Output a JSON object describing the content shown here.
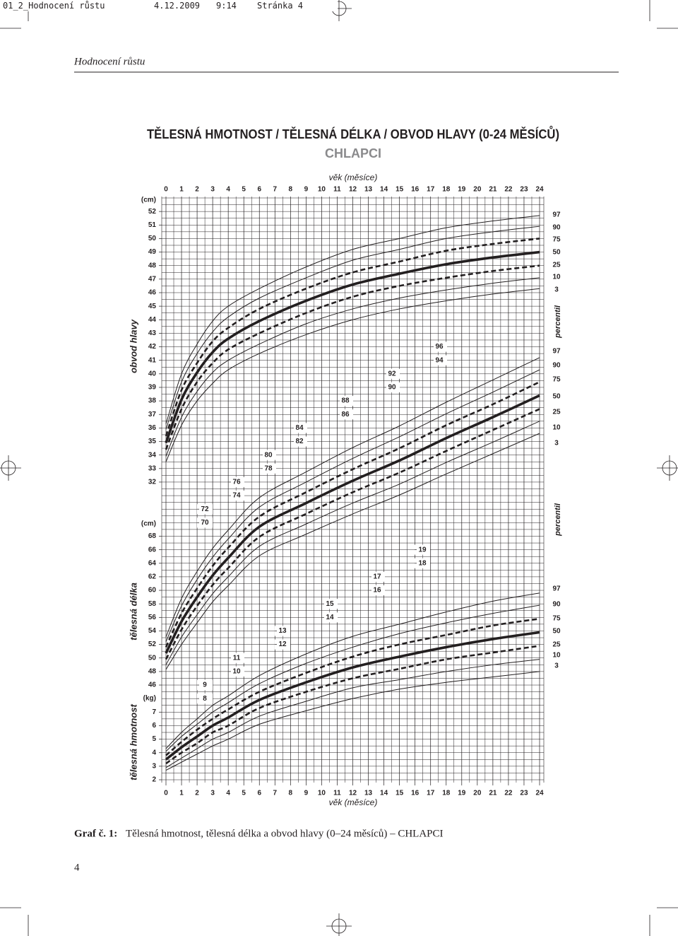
{
  "print_slug": {
    "file": "01_2_Hodnocení růstu",
    "date": "4.12.2009",
    "time": "9:14",
    "page": "Stránka 4"
  },
  "running_head": "Hodnocení růstu",
  "title": "TĚLESNÁ HMOTNOST / TĚLESNÁ DÉLKA / OBVOD HLAVY (0-24 MĚSÍCŮ)",
  "subtitle": "CHLAPCI",
  "chart_data": [
    {
      "type": "line",
      "y_label": "obvod hlavy",
      "y_unit": "(cm)",
      "x_label": "věk (měsíce)",
      "legend_title": "percentil",
      "color": "#231f20",
      "x": [
        0,
        1,
        2,
        3,
        4,
        6,
        9,
        12,
        15,
        18,
        21,
        24
      ],
      "xlim": [
        0,
        24
      ],
      "xticks": [
        0,
        1,
        2,
        3,
        4,
        5,
        6,
        7,
        8,
        9,
        10,
        11,
        12,
        13,
        14,
        15,
        16,
        17,
        18,
        19,
        20,
        21,
        22,
        23,
        24
      ],
      "ylim": [
        10,
        53
      ],
      "yticks": [
        32,
        33,
        34,
        35,
        36,
        37,
        38,
        39,
        40,
        41,
        42,
        43,
        44,
        45,
        46,
        47,
        48,
        49,
        50,
        51,
        52
      ],
      "series": [
        {
          "name": "97",
          "style": "thin",
          "values": [
            36.3,
            40.0,
            42.2,
            43.9,
            45.0,
            46.3,
            47.9,
            49.2,
            50.0,
            50.8,
            51.3,
            51.7
          ]
        },
        {
          "name": "90",
          "style": "thin",
          "values": [
            35.9,
            39.4,
            41.5,
            43.1,
            44.2,
            45.6,
            47.1,
            48.4,
            49.2,
            50.0,
            50.5,
            50.9
          ]
        },
        {
          "name": "75",
          "style": "dashed",
          "values": [
            35.4,
            38.8,
            40.8,
            42.4,
            43.4,
            44.8,
            46.3,
            47.5,
            48.3,
            49.1,
            49.6,
            50.0
          ]
        },
        {
          "name": "50",
          "style": "thick",
          "values": [
            34.9,
            38.1,
            40.1,
            41.6,
            42.6,
            43.9,
            45.4,
            46.6,
            47.4,
            48.1,
            48.6,
            49.0
          ]
        },
        {
          "name": "25",
          "style": "dashed",
          "values": [
            34.4,
            37.4,
            39.4,
            40.8,
            41.8,
            43.0,
            44.5,
            45.7,
            46.5,
            47.1,
            47.6,
            48.0
          ]
        },
        {
          "name": "10",
          "style": "thin",
          "values": [
            33.9,
            36.8,
            38.7,
            40.1,
            41.0,
            42.2,
            43.7,
            44.8,
            45.6,
            46.2,
            46.7,
            47.1
          ]
        },
        {
          "name": "3",
          "style": "thin",
          "values": [
            33.5,
            36.2,
            38.0,
            39.3,
            40.3,
            41.5,
            42.9,
            44.0,
            44.8,
            45.4,
            45.9,
            46.3
          ]
        }
      ]
    },
    {
      "type": "line",
      "y_label": "tělesná délka",
      "y_unit": "(cm)",
      "legend_title": "percentil",
      "color": "#231f20",
      "x": [
        0,
        1,
        2,
        3,
        4,
        6,
        9,
        12,
        15,
        18,
        21,
        24
      ],
      "xlim": [
        0,
        24
      ],
      "ylim": [
        32,
        118
      ],
      "yticks": [
        46,
        48,
        50,
        52,
        54,
        56,
        58,
        60,
        62,
        64,
        66,
        68,
        70,
        72,
        74,
        76,
        78,
        80,
        82,
        84,
        86,
        88,
        90,
        92,
        94,
        96
      ],
      "series": [
        {
          "name": "97",
          "style": "thin",
          "values": [
            53.1,
            58.8,
            62.8,
            66.2,
            68.9,
            73.7,
            77.5,
            81.1,
            84.3,
            87.8,
            91.1,
            94.4
          ]
        },
        {
          "name": "90",
          "style": "thin",
          "values": [
            52.4,
            57.7,
            61.6,
            64.9,
            67.6,
            72.3,
            76.0,
            79.5,
            82.7,
            86.1,
            89.3,
            92.6
          ]
        },
        {
          "name": "75",
          "style": "dashed",
          "values": [
            51.6,
            56.6,
            60.3,
            63.6,
            66.3,
            70.9,
            74.5,
            77.9,
            81.0,
            84.4,
            87.5,
            90.8
          ]
        },
        {
          "name": "50",
          "style": "thick",
          "values": [
            50.7,
            55.4,
            59.0,
            62.2,
            64.8,
            69.4,
            72.9,
            76.2,
            79.2,
            82.5,
            85.6,
            88.8
          ]
        },
        {
          "name": "25",
          "style": "dashed",
          "values": [
            49.8,
            54.2,
            57.7,
            60.8,
            63.3,
            67.9,
            71.3,
            74.5,
            77.4,
            80.6,
            83.7,
            86.8
          ]
        },
        {
          "name": "10",
          "style": "thin",
          "values": [
            49.0,
            53.1,
            56.4,
            59.5,
            62.0,
            66.5,
            69.8,
            72.9,
            75.7,
            78.9,
            81.9,
            85.0
          ]
        },
        {
          "name": "3",
          "style": "thin",
          "values": [
            48.3,
            52.0,
            55.2,
            58.3,
            60.7,
            65.1,
            68.3,
            71.3,
            74.1,
            77.2,
            80.2,
            83.2
          ]
        }
      ]
    },
    {
      "type": "line",
      "y_label": "tělesná hmotnost",
      "y_unit": "(kg)",
      "x_label": "věk (měsíce)",
      "color": "#231f20",
      "x": [
        0,
        1,
        2,
        3,
        4,
        6,
        9,
        12,
        15,
        18,
        21,
        24
      ],
      "xlim": [
        0,
        24
      ],
      "xticks": [
        0,
        1,
        2,
        3,
        4,
        5,
        6,
        7,
        8,
        9,
        10,
        11,
        12,
        13,
        14,
        15,
        16,
        17,
        18,
        19,
        20,
        21,
        22,
        23,
        24
      ],
      "ylim": [
        2,
        45
      ],
      "yticks": [
        2,
        3,
        4,
        5,
        6,
        7,
        8,
        9,
        10,
        11,
        12,
        13,
        14,
        15,
        16,
        17,
        18,
        19
      ],
      "series": [
        {
          "name": "97",
          "style": "thin",
          "values": [
            4.3,
            5.5,
            6.5,
            7.5,
            8.2,
            9.7,
            11.3,
            12.6,
            13.5,
            14.4,
            15.2,
            15.8
          ]
        },
        {
          "name": "90",
          "style": "thin",
          "values": [
            4.1,
            5.2,
            6.1,
            7.0,
            7.7,
            9.1,
            10.6,
            11.8,
            12.8,
            13.6,
            14.3,
            14.9
          ]
        },
        {
          "name": "75",
          "style": "dashed",
          "values": [
            3.8,
            4.8,
            5.7,
            6.5,
            7.2,
            8.5,
            9.9,
            11.1,
            12.0,
            12.7,
            13.4,
            13.9
          ]
        },
        {
          "name": "50",
          "style": "thick",
          "values": [
            3.5,
            4.4,
            5.2,
            6.0,
            6.6,
            7.9,
            9.2,
            10.3,
            11.1,
            11.8,
            12.4,
            12.9
          ]
        },
        {
          "name": "25",
          "style": "dashed",
          "values": [
            3.2,
            4.0,
            4.7,
            5.5,
            6.0,
            7.3,
            8.5,
            9.5,
            10.2,
            10.9,
            11.4,
            11.9
          ]
        },
        {
          "name": "10",
          "style": "thin",
          "values": [
            2.9,
            3.6,
            4.3,
            5.0,
            5.5,
            6.7,
            7.8,
            8.8,
            9.4,
            10.0,
            10.5,
            10.9
          ]
        },
        {
          "name": "3",
          "style": "thin",
          "values": [
            2.7,
            3.3,
            3.9,
            4.5,
            5.0,
            6.1,
            7.1,
            8.0,
            8.7,
            9.2,
            9.6,
            10.0
          ]
        }
      ]
    }
  ],
  "caption": {
    "label": "Graf č. 1:",
    "text": "Tělesná hmotnost, tělesná délka a obvod hlavy (0–24 měsíců) – CHLAPCI"
  },
  "page_number": "4"
}
